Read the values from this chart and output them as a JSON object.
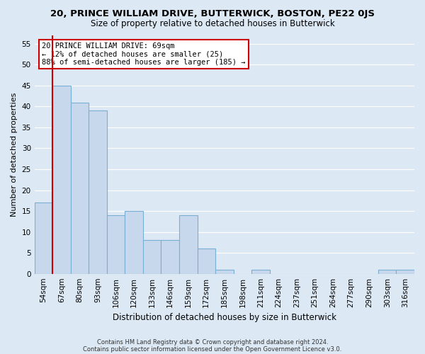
{
  "title": "20, PRINCE WILLIAM DRIVE, BUTTERWICK, BOSTON, PE22 0JS",
  "subtitle": "Size of property relative to detached houses in Butterwick",
  "xlabel": "Distribution of detached houses by size in Butterwick",
  "ylabel": "Number of detached properties",
  "bin_labels": [
    "54sqm",
    "67sqm",
    "80sqm",
    "93sqm",
    "106sqm",
    "120sqm",
    "133sqm",
    "146sqm",
    "159sqm",
    "172sqm",
    "185sqm",
    "198sqm",
    "211sqm",
    "224sqm",
    "237sqm",
    "251sqm",
    "264sqm",
    "277sqm",
    "290sqm",
    "303sqm",
    "316sqm"
  ],
  "bar_heights": [
    17,
    45,
    41,
    39,
    14,
    15,
    8,
    8,
    14,
    6,
    1,
    0,
    1,
    0,
    0,
    0,
    0,
    0,
    0,
    1,
    1
  ],
  "bar_color": "#c8d8ec",
  "bar_edge_color": "#7aafd4",
  "marker_line_bin_index": 1,
  "marker_line_color": "#cc0000",
  "ylim": [
    0,
    57
  ],
  "yticks": [
    0,
    5,
    10,
    15,
    20,
    25,
    30,
    35,
    40,
    45,
    50,
    55
  ],
  "annotation_title": "20 PRINCE WILLIAM DRIVE: 69sqm",
  "annotation_line1": "← 12% of detached houses are smaller (25)",
  "annotation_line2": "88% of semi-detached houses are larger (185) →",
  "annotation_box_color": "#ffffff",
  "annotation_box_edge": "#cc0000",
  "footer_line1": "Contains HM Land Registry data © Crown copyright and database right 2024.",
  "footer_line2": "Contains public sector information licensed under the Open Government Licence v3.0.",
  "background_color": "#dce8f4",
  "plot_background": "#dce8f4"
}
